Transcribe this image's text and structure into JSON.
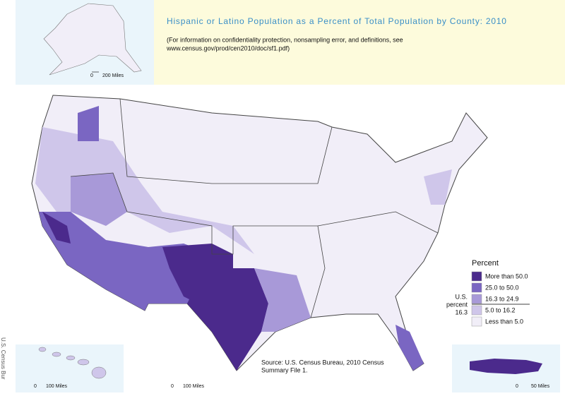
{
  "header": {
    "title": "Hispanic or Latino Population as a Percent of Total Population by County: 2010",
    "note": [
      "(For information on confidentiality protection, nonsampling error, and definitions, see",
      "www.census.gov/prod/cen2010/doc/sf1.pdf)"
    ]
  },
  "legend": {
    "title": "Percent",
    "items": [
      {
        "label": "More than 50.0",
        "color": "#4b2a8c"
      },
      {
        "label": "25.0 to 50.0",
        "color": "#7a66c2"
      },
      {
        "label": "16.3 to 24.9",
        "color": "#a899d8"
      },
      {
        "label": "5.0 to 16.2",
        "color": "#cfc6ea"
      },
      {
        "label": "Less than 5.0",
        "color": "#f1eef8"
      }
    ],
    "us_label": [
      "U.S.",
      "percent"
    ],
    "us_value": 16.3
  },
  "scales": [
    {
      "start": "0",
      "end": "200 Miles"
    },
    {
      "start": "0",
      "end": "100 Miles"
    },
    {
      "start": "0",
      "end": "100 Miles"
    },
    {
      "start": "0",
      "end": "50 Miles"
    }
  ],
  "source": [
    "Source:  U.S. Census Bureau, 2010 Census",
    "Summary File 1."
  ],
  "side_text": "U.S. Census Bur"
}
